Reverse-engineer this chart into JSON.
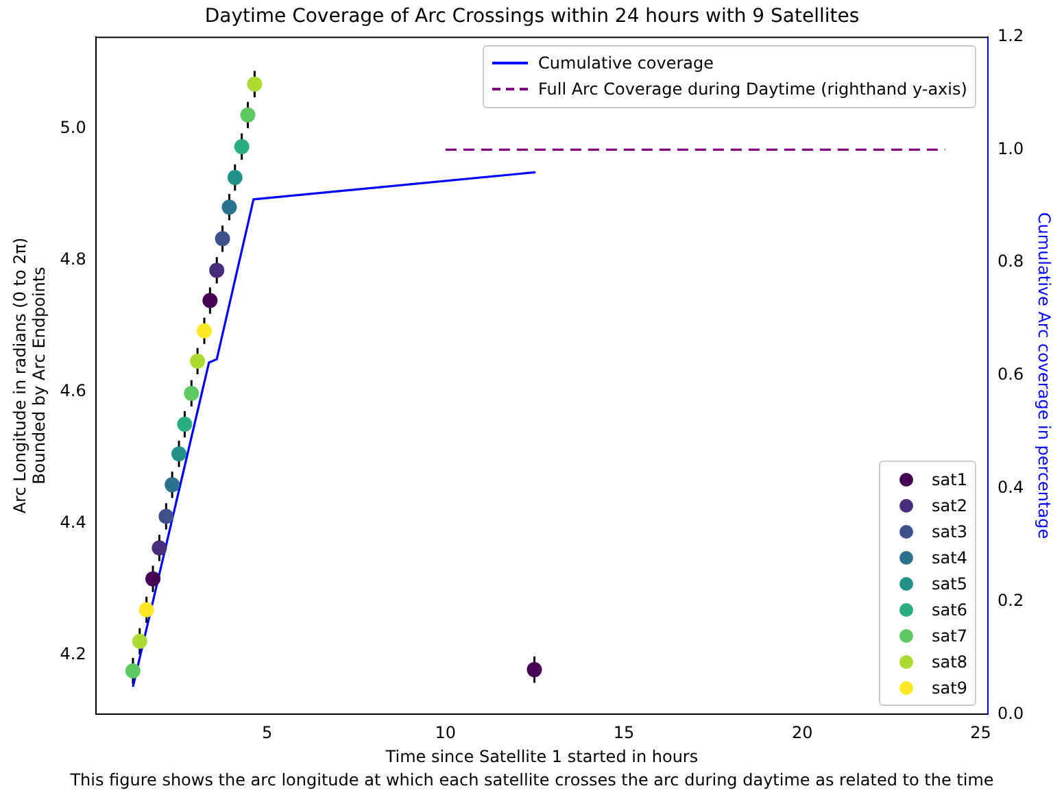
{
  "chart_data": {
    "type": "scatter",
    "title": "Daytime Coverage of Arc Crossings within 24 hours with 9 Satellites",
    "xlabel": "Time since Satellite 1 started in hours",
    "ylabel": "Arc Longitude in radians (0 to 2π)\nBounded by Arc Endpoints",
    "y2label": "Cumulative Arc coverage in percentage",
    "annotations": [
      "This figure shows the arc longitude at which each satellite crosses the arc during daytime as related to the time"
    ],
    "xlim": [
      0.2,
      25.2
    ],
    "xticks": [
      5,
      10,
      15,
      20,
      25
    ],
    "ylim": [
      4.11,
      5.14
    ],
    "yticks": [
      4.2,
      4.4,
      4.6,
      4.8,
      {
        "value": 5,
        "label": "5.0"
      }
    ],
    "y2lim": [
      0,
      1.2
    ],
    "y2ticks": [
      {
        "value": 0,
        "label": "0.0"
      },
      0.2,
      0.4,
      0.6,
      0.8,
      {
        "value": 1,
        "label": "1.0"
      },
      1.2
    ],
    "grid": false,
    "legend": "top right",
    "marker": "circle",
    "series": [
      {
        "name": "Cumulative coverage",
        "type": "line",
        "axis": "y2",
        "color": "#0000ff",
        "marker": "none",
        "line_style": "solid",
        "x": [
          1.24,
          3.37,
          3.59,
          4.62,
          12.52
        ],
        "values": [
          0.049,
          0.623,
          0.629,
          0.912,
          0.96
        ]
      },
      {
        "name": "Full Arc Coverage during Daytime (righthand y-axis)",
        "type": "line",
        "axis": "y2",
        "color": "#800080",
        "marker": "none",
        "line_style": "dashed",
        "x": [
          10,
          24
        ],
        "values": [
          1,
          1
        ]
      },
      {
        "name": "sat1",
        "color": "#440154",
        "x": [
          1.8,
          3.4,
          12.49
        ],
        "values": [
          4.316,
          4.739,
          4.178
        ],
        "errors": [
          0.02,
          0.02,
          0.02
        ]
      },
      {
        "name": "sat2",
        "color": "#472d7b",
        "x": [
          1.98,
          3.59
        ],
        "values": [
          4.363,
          4.785
        ],
        "errors": [
          0.02,
          0.02
        ]
      },
      {
        "name": "sat3",
        "color": "#3b528b",
        "x": [
          2.17,
          3.75
        ],
        "values": [
          4.411,
          4.833
        ],
        "errors": [
          0.02,
          0.02
        ]
      },
      {
        "name": "sat4",
        "color": "#2c728e",
        "x": [
          2.34,
          3.94
        ],
        "values": [
          4.459,
          4.881
        ],
        "errors": [
          0.02,
          0.02
        ]
      },
      {
        "name": "sat5",
        "color": "#21918c",
        "x": [
          2.53,
          4.1
        ],
        "values": [
          4.506,
          4.926
        ],
        "errors": [
          0.02,
          0.02
        ]
      },
      {
        "name": "sat6",
        "color": "#28ae80",
        "x": [
          2.69,
          4.29
        ],
        "values": [
          4.551,
          4.973
        ],
        "errors": [
          0.02,
          0.02
        ]
      },
      {
        "name": "sat7",
        "color": "#5ec962",
        "x": [
          1.24,
          2.88,
          4.46
        ],
        "values": [
          4.176,
          4.598,
          5.021
        ],
        "errors": [
          0.02,
          0.02,
          0.02
        ]
      },
      {
        "name": "sat8",
        "color": "#addc30",
        "x": [
          1.43,
          3.05,
          4.65
        ],
        "values": [
          4.221,
          4.647,
          5.068
        ],
        "errors": [
          0.02,
          0.02,
          0.02
        ]
      },
      {
        "name": "sat9",
        "color": "#fde725",
        "x": [
          1.62,
          3.24
        ],
        "values": [
          4.269,
          4.693
        ],
        "errors": [
          0.02,
          0.02
        ]
      }
    ]
  }
}
